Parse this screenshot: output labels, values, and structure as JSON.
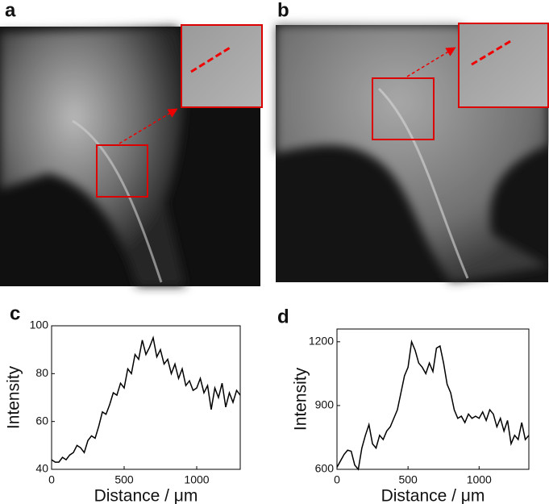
{
  "panel_labels": [
    "a",
    "b"
  ],
  "chart_data": [
    {
      "type": "line",
      "label": "c",
      "xlabel": "Distance / μm",
      "ylabel": "Intensity",
      "color": "#000000",
      "x": [
        0,
        25,
        50,
        75,
        100,
        125,
        150,
        175,
        200,
        225,
        250,
        275,
        300,
        325,
        350,
        375,
        400,
        425,
        450,
        475,
        500,
        525,
        550,
        575,
        600,
        625,
        650,
        675,
        700,
        725,
        750,
        775,
        800,
        825,
        850,
        875,
        900,
        925,
        950,
        975,
        1000,
        1025,
        1050,
        1075,
        1100,
        1125,
        1150,
        1175,
        1200,
        1225,
        1250,
        1275,
        1300
      ],
      "values": [
        44,
        43,
        43,
        45,
        44,
        46,
        47,
        50,
        49,
        47,
        52,
        54,
        53,
        58,
        64,
        63,
        67,
        72,
        71,
        76,
        74,
        82,
        80,
        88,
        86,
        94,
        88,
        91,
        95,
        87,
        90,
        84,
        86,
        80,
        84,
        78,
        82,
        75,
        77,
        73,
        74,
        78,
        72,
        75,
        65,
        74,
        70,
        76,
        66,
        72,
        68,
        73,
        71
      ],
      "xlim": [
        0,
        1300
      ],
      "xticks": [
        0,
        500,
        1000
      ],
      "ylim": [
        40,
        100
      ],
      "yticks": [
        40,
        60,
        80,
        100
      ]
    },
    {
      "type": "line",
      "label": "d",
      "xlabel": "Distance / μm",
      "ylabel": "Intensity",
      "color": "#000000",
      "x": [
        0,
        25,
        50,
        75,
        100,
        125,
        150,
        175,
        200,
        225,
        250,
        275,
        300,
        325,
        350,
        375,
        400,
        425,
        450,
        475,
        500,
        525,
        550,
        575,
        600,
        625,
        650,
        675,
        700,
        725,
        750,
        775,
        800,
        825,
        850,
        875,
        900,
        925,
        950,
        975,
        1000,
        1025,
        1050,
        1075,
        1100,
        1125,
        1150,
        1175,
        1200,
        1225,
        1250,
        1275,
        1300,
        1325,
        1350
      ],
      "values": [
        610,
        640,
        670,
        690,
        685,
        620,
        600,
        700,
        760,
        810,
        720,
        700,
        760,
        740,
        780,
        800,
        840,
        880,
        960,
        1040,
        1080,
        1200,
        1160,
        1100,
        1080,
        1050,
        1100,
        1060,
        1170,
        1180,
        1100,
        1000,
        960,
        880,
        840,
        850,
        820,
        860,
        840,
        850,
        840,
        870,
        830,
        880,
        860,
        800,
        840,
        780,
        830,
        720,
        760,
        740,
        820,
        740,
        760
      ],
      "xlim": [
        0,
        1350
      ],
      "xticks": [
        0,
        500,
        1000
      ],
      "ylim": [
        600,
        1260
      ],
      "yticks": [
        600,
        900,
        1200
      ]
    }
  ]
}
